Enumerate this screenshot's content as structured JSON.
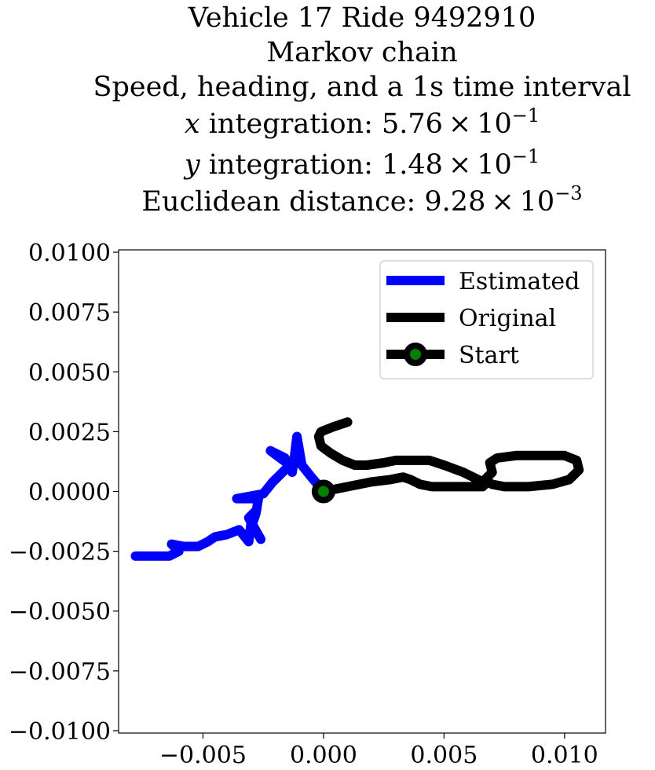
{
  "chart_data": {
    "type": "line",
    "title_lines": [
      {
        "parts": [
          {
            "text": "Vehicle 17 Ride 9492910"
          }
        ]
      },
      {
        "parts": [
          {
            "text": "Markov chain"
          }
        ]
      },
      {
        "parts": [
          {
            "text": "Speed, heading, and a 1s time interval"
          }
        ]
      },
      {
        "parts": [
          {
            "text": "x",
            "italic": true
          },
          {
            "text": " integration: 5.76 × 10"
          },
          {
            "text": "−1",
            "sup": true
          }
        ]
      },
      {
        "parts": [
          {
            "text": "y",
            "italic": true
          },
          {
            "text": " integration: 1.48 × 10"
          },
          {
            "text": "−1",
            "sup": true
          }
        ]
      },
      {
        "parts": [
          {
            "text": "Euclidean distance: 9.28 × 10"
          },
          {
            "text": "−3",
            "sup": true
          }
        ]
      }
    ],
    "xlim": [
      -0.0085,
      0.0117
    ],
    "ylim": [
      -0.0101,
      0.0101
    ],
    "x_ticks": [
      {
        "value": -0.005,
        "label": "−0.005"
      },
      {
        "value": 0.0,
        "label": "0.000"
      },
      {
        "value": 0.005,
        "label": "0.005"
      },
      {
        "value": 0.01,
        "label": "0.010"
      }
    ],
    "y_ticks": [
      {
        "value": 0.01,
        "label": "0.0100"
      },
      {
        "value": 0.0075,
        "label": "0.0075"
      },
      {
        "value": 0.005,
        "label": "0.0050"
      },
      {
        "value": 0.0025,
        "label": "0.0025"
      },
      {
        "value": 0.0,
        "label": "0.0000"
      },
      {
        "value": -0.0025,
        "label": "−0.0025"
      },
      {
        "value": -0.005,
        "label": "−0.0050"
      },
      {
        "value": -0.0075,
        "label": "−0.0075"
      },
      {
        "value": -0.01,
        "label": "−0.0100"
      }
    ],
    "grid": false,
    "legend_position": "top-right",
    "series": [
      {
        "name": "Estimated",
        "color": "#0000ff",
        "points": [
          [
            0.0,
            0.0
          ],
          [
            -0.0005,
            0.0006
          ],
          [
            -0.0009,
            0.0011
          ],
          [
            -0.0011,
            0.0023
          ],
          [
            -0.0012,
            0.0015
          ],
          [
            -0.0013,
            0.0008
          ],
          [
            -0.0016,
            0.0014
          ],
          [
            -0.0022,
            0.0017
          ],
          [
            -0.0014,
            0.0011
          ],
          [
            -0.0018,
            0.0007
          ],
          [
            -0.0021,
            0.0004
          ],
          [
            -0.0025,
            -0.0001
          ],
          [
            -0.0036,
            -0.0003
          ],
          [
            -0.0027,
            -0.0003
          ],
          [
            -0.0028,
            -0.0009
          ],
          [
            -0.003,
            -0.0015
          ],
          [
            -0.0028,
            -0.0008
          ],
          [
            -0.0031,
            -0.0011
          ],
          [
            -0.0026,
            -0.002
          ],
          [
            -0.003,
            -0.0013
          ],
          [
            -0.0031,
            -0.0021
          ],
          [
            -0.0035,
            -0.0016
          ],
          [
            -0.004,
            -0.0018
          ],
          [
            -0.0045,
            -0.0019
          ],
          [
            -0.0048,
            -0.0021
          ],
          [
            -0.0052,
            -0.0023
          ],
          [
            -0.0058,
            -0.0023
          ],
          [
            -0.0063,
            -0.0022
          ],
          [
            -0.006,
            -0.0025
          ],
          [
            -0.0064,
            -0.0027
          ],
          [
            -0.007,
            -0.0027
          ],
          [
            -0.0078,
            -0.0027
          ]
        ]
      },
      {
        "name": "Original",
        "color": "#000000",
        "points": [
          [
            0.0,
            0.0
          ],
          [
            0.001,
            0.0002
          ],
          [
            0.002,
            0.0004
          ],
          [
            0.0028,
            0.0005
          ],
          [
            0.0033,
            0.0006
          ],
          [
            0.0036,
            0.0005
          ],
          [
            0.004,
            0.0003
          ],
          [
            0.0045,
            0.0002
          ],
          [
            0.0052,
            0.0002
          ],
          [
            0.0058,
            0.0002
          ],
          [
            0.0066,
            0.0002
          ],
          [
            0.0068,
            0.0004
          ],
          [
            0.007,
            0.0003
          ],
          [
            0.0075,
            0.0002
          ],
          [
            0.0085,
            0.0002
          ],
          [
            0.0095,
            0.0003
          ],
          [
            0.0102,
            0.0005
          ],
          [
            0.0106,
            0.0009
          ],
          [
            0.0105,
            0.0013
          ],
          [
            0.01,
            0.0015
          ],
          [
            0.009,
            0.0015
          ],
          [
            0.008,
            0.0015
          ],
          [
            0.0072,
            0.0014
          ],
          [
            0.0069,
            0.0012
          ],
          [
            0.007,
            0.0008
          ],
          [
            0.0066,
            0.0004
          ],
          [
            0.0058,
            0.0008
          ],
          [
            0.005,
            0.0011
          ],
          [
            0.0044,
            0.0013
          ],
          [
            0.0037,
            0.0013
          ],
          [
            0.003,
            0.0013
          ],
          [
            0.0025,
            0.0012
          ],
          [
            0.0018,
            0.0011
          ],
          [
            0.0013,
            0.0011
          ],
          [
            0.0008,
            0.0013
          ],
          [
            0.0003,
            0.0016
          ],
          [
            -0.0001,
            0.0019
          ],
          [
            -0.0002,
            0.0023
          ],
          [
            -0.0001,
            0.0025
          ],
          [
            0.0004,
            0.0027
          ],
          [
            0.001,
            0.0029
          ]
        ]
      }
    ],
    "start_point": {
      "name": "Start",
      "x": 0.0,
      "y": 0.0,
      "color": "#008000",
      "edge_color": "#000000"
    }
  }
}
